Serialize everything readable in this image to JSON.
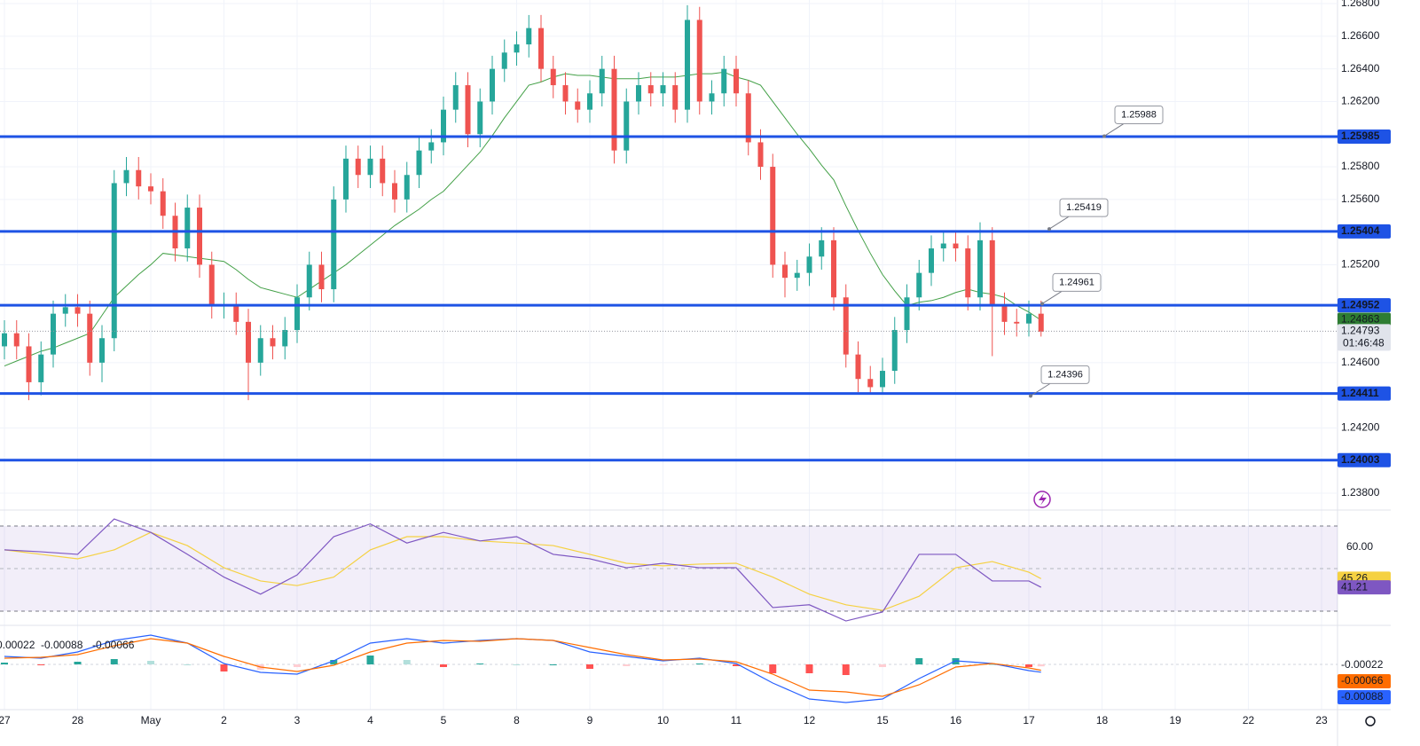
{
  "chart_data": [
    {
      "type": "candlestick",
      "categories": [
        "27",
        null,
        null,
        null,
        null,
        null,
        "28",
        null,
        null,
        null,
        null,
        null,
        "May",
        null,
        null,
        null,
        null,
        null,
        "2",
        null,
        null,
        null,
        null,
        null,
        "3",
        null,
        null,
        null,
        null,
        null,
        "4",
        null,
        null,
        null,
        null,
        null,
        "5",
        null,
        null,
        null,
        null,
        null,
        "8",
        null,
        null,
        null,
        null,
        null,
        "9",
        null,
        null,
        null,
        null,
        null,
        "10",
        null,
        null,
        null,
        null,
        null,
        "11",
        null,
        null,
        null,
        null,
        null,
        "12",
        null,
        null,
        null,
        null,
        null,
        "15",
        null,
        null,
        null,
        null,
        null,
        "16",
        null,
        null,
        null,
        null,
        null,
        "17",
        null,
        null,
        null,
        null,
        null,
        "18",
        null,
        null,
        null,
        null,
        null,
        "19",
        null,
        null,
        null,
        null,
        null,
        "22",
        null,
        null,
        null,
        null,
        null,
        "23"
      ],
      "open": [
        1.247,
        1.2478,
        1.247,
        1.2448,
        1.2465,
        1.249,
        1.2494,
        1.249,
        1.246,
        1.2475,
        1.257,
        1.2578,
        1.2568,
        1.2565,
        1.255,
        1.253,
        1.2555,
        1.252,
        1.2495,
        1.2495,
        1.2485,
        1.246,
        1.2475,
        1.247,
        1.248,
        1.25,
        1.252,
        1.2505,
        1.256,
        1.2585,
        1.2575,
        1.2585,
        1.257,
        1.256,
        1.2575,
        1.259,
        1.2595,
        1.2615,
        1.263,
        1.26,
        1.262,
        1.264,
        1.265,
        1.2655,
        1.2665,
        1.264,
        1.263,
        1.262,
        1.2615,
        1.2625,
        1.264,
        1.259,
        1.262,
        1.263,
        1.2625,
        1.263,
        1.2615,
        1.267,
        1.262,
        1.2625,
        1.264,
        1.2625,
        1.2595,
        1.258,
        1.252,
        1.2512,
        1.2515,
        1.2525,
        1.2535,
        1.25,
        1.2465,
        1.245,
        1.2445,
        1.2455,
        1.248,
        1.25,
        1.2515,
        1.253,
        1.2533,
        1.253,
        1.25,
        1.2535,
        1.2495,
        1.2485,
        1.2484,
        1.249,
        null,
        null,
        null,
        null,
        null,
        null,
        null,
        null,
        null,
        null,
        null,
        null,
        null,
        null,
        null,
        null,
        null,
        null,
        null,
        null,
        null,
        null,
        null
      ],
      "high": [
        1.2486,
        1.2486,
        1.2478,
        1.2473,
        1.2498,
        1.2502,
        1.2502,
        1.2498,
        1.2483,
        1.2578,
        1.2586,
        1.2586,
        1.2576,
        1.2573,
        1.2558,
        1.2563,
        1.2563,
        1.2528,
        1.2503,
        1.2503,
        1.2493,
        1.2483,
        1.2483,
        1.2488,
        1.2508,
        1.2528,
        1.2528,
        1.2568,
        1.2593,
        1.2593,
        1.2593,
        1.2593,
        1.2578,
        1.2583,
        1.2598,
        1.2603,
        1.2623,
        1.2638,
        1.2638,
        1.2628,
        1.2648,
        1.2658,
        1.2663,
        1.2673,
        1.2673,
        1.2648,
        1.2638,
        1.2628,
        1.2633,
        1.2648,
        1.2648,
        1.2628,
        1.2638,
        1.2638,
        1.2638,
        1.2638,
        1.2679,
        1.2678,
        1.2633,
        1.2648,
        1.2648,
        1.2633,
        1.2603,
        1.2588,
        1.2528,
        1.2523,
        1.2533,
        1.2543,
        1.2543,
        1.2508,
        1.2473,
        1.2458,
        1.2463,
        1.2488,
        1.2508,
        1.2523,
        1.2538,
        1.2541,
        1.2541,
        1.2538,
        1.2546,
        1.2543,
        1.2503,
        1.2493,
        1.2498,
        1.2498,
        null,
        null,
        null,
        null,
        null,
        null,
        null,
        null,
        null,
        null,
        null,
        null,
        null,
        null,
        null,
        null,
        null,
        null,
        null,
        null,
        null,
        null,
        null
      ],
      "low": [
        1.2462,
        1.2462,
        1.2437,
        1.244,
        1.2457,
        1.2482,
        1.2482,
        1.2452,
        1.2448,
        1.2467,
        1.2562,
        1.256,
        1.2557,
        1.2542,
        1.2522,
        1.2522,
        1.2512,
        1.2487,
        1.2487,
        1.2477,
        1.2437,
        1.2452,
        1.2462,
        1.2462,
        1.2472,
        1.2492,
        1.2497,
        1.2497,
        1.2552,
        1.2567,
        1.2567,
        1.2562,
        1.2552,
        1.2552,
        1.2567,
        1.2582,
        1.2587,
        1.2607,
        1.2592,
        1.2592,
        1.2612,
        1.2632,
        1.2642,
        1.2647,
        1.2632,
        1.2622,
        1.2612,
        1.2607,
        1.2607,
        1.2617,
        1.2582,
        1.2582,
        1.2612,
        1.2617,
        1.2617,
        1.2607,
        1.2607,
        1.2612,
        1.2612,
        1.2617,
        1.2617,
        1.2587,
        1.2572,
        1.2512,
        1.25,
        1.2504,
        1.2507,
        1.2517,
        1.2492,
        1.2457,
        1.2442,
        1.2441,
        1.2441,
        1.2447,
        1.2472,
        1.2492,
        1.2507,
        1.2522,
        1.2522,
        1.2492,
        1.2492,
        1.2464,
        1.2477,
        1.2476,
        1.2476,
        1.2476,
        null,
        null,
        null,
        null,
        null,
        null,
        null,
        null,
        null,
        null,
        null,
        null,
        null,
        null,
        null,
        null,
        null,
        null,
        null,
        null,
        null,
        null,
        null
      ],
      "close": [
        1.2478,
        1.247,
        1.2448,
        1.2465,
        1.249,
        1.2494,
        1.249,
        1.246,
        1.2475,
        1.257,
        1.2578,
        1.2568,
        1.2565,
        1.255,
        1.253,
        1.2555,
        1.252,
        1.2495,
        1.2495,
        1.2485,
        1.246,
        1.2475,
        1.247,
        1.248,
        1.25,
        1.252,
        1.2505,
        1.256,
        1.2585,
        1.2575,
        1.2585,
        1.257,
        1.256,
        1.2575,
        1.259,
        1.2595,
        1.2615,
        1.263,
        1.26,
        1.262,
        1.264,
        1.265,
        1.2655,
        1.2665,
        1.264,
        1.263,
        1.262,
        1.2615,
        1.2625,
        1.264,
        1.259,
        1.262,
        1.263,
        1.2625,
        1.263,
        1.2615,
        1.267,
        1.262,
        1.2625,
        1.264,
        1.2625,
        1.2595,
        1.258,
        1.252,
        1.2512,
        1.2515,
        1.2525,
        1.2535,
        1.25,
        1.2465,
        1.245,
        1.2445,
        1.2455,
        1.248,
        1.25,
        1.2515,
        1.253,
        1.2533,
        1.253,
        1.25,
        1.2535,
        1.2495,
        1.2485,
        1.2484,
        1.249,
        1.2479,
        null,
        null,
        null,
        null,
        null,
        null,
        null,
        null,
        null,
        null,
        null,
        null,
        null,
        null,
        null,
        null,
        null,
        null,
        null,
        null,
        null,
        null,
        null
      ],
      "ma": {
        "color": "#43a047",
        "values": [
          1.2458,
          1.2461,
          1.2464,
          1.2467,
          1.2469,
          1.2472,
          1.2475,
          1.2478,
          1.2489,
          1.25,
          1.2507,
          1.2514,
          1.252,
          1.2527,
          1.2526,
          1.2525,
          1.2524,
          1.2523,
          1.2522,
          1.2517,
          1.2511,
          1.2506,
          1.2504,
          1.2502,
          1.25,
          1.2505,
          1.251,
          1.2515,
          1.252,
          1.2526,
          1.2532,
          1.2538,
          1.2544,
          1.2549,
          1.2554,
          1.256,
          1.2565,
          1.2573,
          1.2581,
          1.2589,
          1.2599,
          1.261,
          1.262,
          1.263,
          1.2632,
          1.2635,
          1.2637,
          1.2636,
          1.2636,
          1.2635,
          1.2634,
          1.2634,
          1.2634,
          1.2635,
          1.2635,
          1.2635,
          1.2636,
          1.2637,
          1.2637,
          1.2638,
          1.2635,
          1.2633,
          1.263,
          1.262,
          1.261,
          1.26,
          1.2591,
          1.2581,
          1.2572,
          1.2556,
          1.2541,
          1.2527,
          1.2514,
          1.2504,
          1.2495,
          1.2497,
          1.2498,
          1.25,
          1.2503,
          1.2505,
          1.2503,
          1.2502,
          1.25,
          1.2495,
          1.2491,
          1.2486,
          null,
          null,
          null,
          null,
          null,
          null,
          null,
          null,
          null,
          null,
          null,
          null,
          null,
          null,
          null,
          null,
          null,
          null,
          null,
          null,
          null,
          null,
          null
        ]
      },
      "up_color": "#26a69a",
      "down_color": "#ef5350",
      "level_color": "#1e53e5",
      "ylim": [
        1.23697,
        1.26822
      ],
      "yticks": [
        {
          "value": 1.268,
          "label": "1.26800"
        },
        {
          "value": 1.266,
          "label": "1.26600"
        },
        {
          "value": 1.264,
          "label": "1.26400"
        },
        {
          "value": 1.262,
          "label": "1.26200"
        },
        {
          "value": 1.258,
          "label": "1.25800"
        },
        {
          "value": 1.256,
          "label": "1.25600"
        },
        {
          "value": 1.252,
          "label": "1.25200"
        },
        {
          "value": 1.246,
          "label": "1.24600"
        },
        {
          "value": 1.242,
          "label": "1.24200"
        },
        {
          "value": 1.238,
          "label": "1.23800"
        }
      ],
      "grid": true,
      "levels": [
        1.25985,
        1.25404,
        1.24952,
        1.24411,
        1.24003
      ],
      "level_callouts": [
        1.25988,
        1.25419,
        1.24961,
        1.24396
      ],
      "ma_last": 1.24863,
      "last_price": 1.24793,
      "countdown": "01:46:48"
    },
    {
      "type": "line",
      "x": [
        0,
        3,
        6,
        9,
        12,
        15,
        18,
        21,
        24,
        27,
        30,
        33,
        36,
        39,
        42,
        45,
        48,
        51,
        54,
        57,
        60,
        63,
        66,
        69,
        72,
        75,
        78,
        81,
        84,
        85
      ],
      "series": [
        {
          "color": "#7e57c2",
          "values": [
            58.8,
            57.9,
            56.7,
            73.3,
            67,
            56.7,
            46,
            38,
            47,
            65,
            71,
            62,
            67,
            63,
            65,
            56.7,
            54.6,
            50.4,
            52.5,
            50.4,
            50.4,
            31.7,
            33,
            25.4,
            29.6,
            56.7,
            56.7,
            44.2,
            44.2,
            41.21
          ]
        },
        {
          "color": "#f5d142",
          "values": [
            58.8,
            56.7,
            54.6,
            58.8,
            67,
            60.8,
            50.4,
            44.2,
            42,
            46,
            58.8,
            65,
            65,
            63,
            62,
            60.8,
            56.7,
            52.5,
            51.3,
            52.1,
            52.5,
            46,
            38,
            33,
            30.4,
            37,
            50.4,
            53.3,
            48.3,
            45.26
          ]
        }
      ],
      "ylim": [
        23.33,
        76.25
      ],
      "yticks": [
        {
          "value": 60,
          "label": "60.00"
        }
      ],
      "band": [
        30,
        70
      ],
      "midline": 50
    },
    {
      "type": "macd",
      "x": [
        0,
        3,
        6,
        9,
        12,
        15,
        18,
        21,
        24,
        27,
        30,
        33,
        36,
        39,
        42,
        45,
        48,
        51,
        54,
        57,
        60,
        63,
        66,
        69,
        72,
        75,
        78,
        81,
        84,
        85
      ],
      "histogram": [
        0.0002,
        -0.0001,
        0.0003,
        0.0006,
        0.0004,
        0,
        -0.0008,
        -0.0006,
        -0.0003,
        0.0005,
        0.001,
        0.0005,
        -0.0003,
        0.0001,
        0,
        0,
        -0.0005,
        -0.0002,
        -0.0001,
        0.0001,
        -0.0002,
        -0.001,
        -0.001,
        -0.0012,
        -0.0003,
        0.0007,
        0.0007,
        0,
        -0.0003,
        -0.00022
      ],
      "series": [
        {
          "color": "#2962ff",
          "values": [
            0.0009,
            0.0007,
            0.0014,
            0.0027,
            0.0033,
            0.0024,
            0.0001,
            -0.0009,
            -0.0011,
            0.0004,
            0.0024,
            0.0029,
            0.0024,
            0.0027,
            0.0029,
            0.0027,
            0.0014,
            0.0009,
            0.0004,
            0.0007,
            0.0001,
            -0.0021,
            -0.0039,
            -0.0043,
            -0.0039,
            -0.0016,
            0.0004,
            0.0001,
            -0.0007,
            -0.00088
          ]
        },
        {
          "color": "#ff6d00",
          "values": [
            0.0007,
            0.0008,
            0.0011,
            0.0021,
            0.0029,
            0.0024,
            0.0009,
            -0.0003,
            -0.0008,
            -0.0001,
            0.0014,
            0.0024,
            0.0027,
            0.0026,
            0.0029,
            0.0027,
            0.0019,
            0.0011,
            0.0005,
            0.0006,
            0.0003,
            -0.0011,
            -0.0029,
            -0.0031,
            -0.0036,
            -0.0023,
            -0.0003,
            0.0001,
            -0.0004,
            -0.00066
          ]
        }
      ],
      "ylim": [
        -0.0051,
        0.0044
      ]
    }
  ]
}
